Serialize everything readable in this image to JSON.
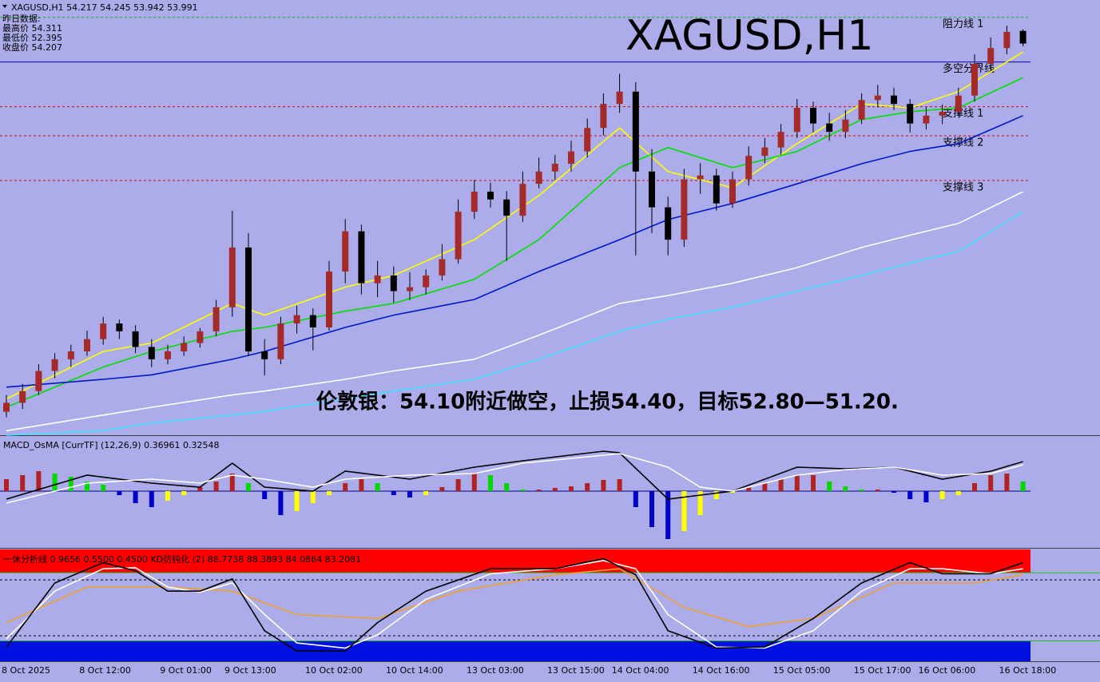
{
  "chart_data": [
    {
      "type": "candlestick",
      "title": "XAGUSD,H1",
      "header": "XAGUSD,H1  54.217 54.245 53.942 53.991",
      "info": [
        "昨日数据:",
        "最高价 54.311",
        "最低价 52.395",
        "收盘价 54.207"
      ],
      "annotation": "伦敦银：54.10附近做空，止损54.40，目标52.80—51.20.",
      "up_color": "#a52a2a",
      "down_color": "#000000",
      "ylim": [
        46.98,
        54.77
      ],
      "categories": [
        null,
        "8 Oct 2025",
        null,
        null,
        null,
        null,
        "8 Oct 12:00",
        null,
        null,
        null,
        null,
        "9 Oct 01:00",
        null,
        null,
        null,
        "9 Oct 13:00",
        null,
        null,
        null,
        null,
        "10 Oct 02:00",
        null,
        null,
        null,
        null,
        "10 Oct 14:00",
        null,
        null,
        null,
        null,
        "13 Oct 03:00",
        null,
        null,
        null,
        null,
        "13 Oct 15:00",
        null,
        null,
        null,
        "14 Oct 04:00",
        null,
        null,
        null,
        null,
        "14 Oct 16:00",
        null,
        null,
        null,
        null,
        "15 Oct 05:00",
        null,
        null,
        null,
        null,
        "15 Oct 17:00",
        null,
        null,
        null,
        "16 Oct 06:00",
        null,
        null,
        null,
        null,
        "16 Oct 18:00"
      ],
      "candles": [
        [
          47.4,
          47.7,
          47.3,
          47.56
        ],
        [
          47.56,
          47.9,
          47.45,
          47.77
        ],
        [
          47.77,
          48.25,
          47.7,
          48.13
        ],
        [
          48.13,
          48.45,
          48.0,
          48.34
        ],
        [
          48.34,
          48.6,
          48.2,
          48.48
        ],
        [
          48.48,
          48.85,
          48.4,
          48.7
        ],
        [
          48.7,
          49.1,
          48.6,
          48.98
        ],
        [
          48.98,
          49.05,
          48.7,
          48.84
        ],
        [
          48.84,
          48.95,
          48.45,
          48.56
        ],
        [
          48.56,
          48.7,
          48.2,
          48.34
        ],
        [
          48.34,
          48.6,
          48.25,
          48.48
        ],
        [
          48.48,
          48.75,
          48.4,
          48.63
        ],
        [
          48.63,
          48.9,
          48.55,
          48.84
        ],
        [
          48.84,
          49.4,
          48.75,
          49.27
        ],
        [
          49.27,
          51.0,
          49.1,
          50.34
        ],
        [
          50.34,
          50.6,
          48.4,
          48.48
        ],
        [
          48.48,
          48.7,
          48.05,
          48.34
        ],
        [
          48.34,
          49.1,
          48.25,
          48.98
        ],
        [
          48.98,
          49.3,
          48.8,
          49.13
        ],
        [
          49.13,
          49.25,
          48.5,
          48.91
        ],
        [
          48.91,
          50.1,
          48.85,
          49.91
        ],
        [
          49.91,
          50.85,
          49.7,
          50.63
        ],
        [
          50.63,
          50.75,
          49.5,
          49.7
        ],
        [
          49.7,
          50.1,
          49.45,
          49.84
        ],
        [
          49.84,
          50.0,
          49.35,
          49.56
        ],
        [
          49.56,
          49.9,
          49.4,
          49.63
        ],
        [
          49.63,
          49.95,
          49.5,
          49.84
        ],
        [
          49.84,
          50.4,
          49.75,
          50.13
        ],
        [
          50.13,
          51.2,
          50.05,
          50.98
        ],
        [
          50.98,
          51.55,
          50.85,
          51.34
        ],
        [
          51.34,
          51.5,
          51.05,
          51.2
        ],
        [
          51.2,
          51.35,
          50.1,
          50.91
        ],
        [
          50.91,
          51.7,
          50.8,
          51.48
        ],
        [
          51.48,
          51.95,
          51.4,
          51.7
        ],
        [
          51.7,
          52.0,
          51.55,
          51.84
        ],
        [
          51.84,
          52.25,
          51.7,
          52.06
        ],
        [
          52.06,
          52.65,
          51.95,
          52.48
        ],
        [
          52.48,
          53.1,
          52.35,
          52.91
        ],
        [
          52.91,
          53.45,
          52.75,
          53.13
        ],
        [
          53.13,
          53.3,
          50.2,
          51.7
        ],
        [
          51.7,
          52.1,
          50.6,
          51.06
        ],
        [
          51.06,
          51.25,
          50.2,
          50.48
        ],
        [
          50.48,
          51.75,
          50.35,
          51.56
        ],
        [
          51.56,
          51.85,
          51.3,
          51.63
        ],
        [
          51.63,
          51.75,
          51.0,
          51.13
        ],
        [
          51.13,
          51.7,
          51.05,
          51.56
        ],
        [
          51.56,
          52.15,
          51.45,
          51.98
        ],
        [
          51.98,
          52.3,
          51.85,
          52.13
        ],
        [
          52.13,
          52.55,
          52.0,
          52.41
        ],
        [
          52.41,
          53.0,
          52.3,
          52.84
        ],
        [
          52.84,
          52.95,
          52.4,
          52.56
        ],
        [
          52.56,
          52.75,
          52.25,
          52.41
        ],
        [
          52.41,
          52.8,
          52.3,
          52.63
        ],
        [
          52.63,
          53.1,
          52.55,
          52.98
        ],
        [
          52.98,
          53.25,
          52.85,
          53.06
        ],
        [
          53.06,
          53.2,
          52.8,
          52.91
        ],
        [
          52.91,
          53.0,
          52.4,
          52.56
        ],
        [
          52.56,
          52.85,
          52.45,
          52.7
        ],
        [
          52.7,
          52.9,
          52.55,
          52.77
        ],
        [
          52.77,
          53.2,
          52.7,
          53.06
        ],
        [
          53.06,
          53.8,
          52.95,
          53.63
        ],
        [
          53.63,
          54.1,
          53.5,
          53.91
        ],
        [
          53.91,
          54.31,
          53.8,
          54.2
        ],
        [
          54.217,
          54.245,
          53.942,
          53.991
        ]
      ],
      "lines": [
        {
          "color": "#ffff00",
          "x": [
            0,
            6,
            9,
            14,
            16,
            21,
            24,
            29,
            33,
            38,
            41,
            45,
            49,
            53,
            56,
            59,
            63
          ],
          "values": [
            47.63,
            48.48,
            48.63,
            49.34,
            49.13,
            49.63,
            49.84,
            50.48,
            51.27,
            52.48,
            51.7,
            51.41,
            52.2,
            52.91,
            52.84,
            53.13,
            53.84
          ]
        },
        {
          "color": "#00e000",
          "x": [
            0,
            6,
            9,
            14,
            16,
            21,
            24,
            29,
            33,
            38,
            41,
            45,
            49,
            53,
            56,
            59,
            63
          ],
          "values": [
            47.48,
            48.2,
            48.48,
            48.84,
            48.91,
            49.2,
            49.34,
            49.77,
            50.48,
            51.77,
            52.13,
            51.77,
            52.06,
            52.63,
            52.77,
            52.84,
            53.38
          ]
        },
        {
          "color": "#0018c8",
          "x": [
            0,
            6,
            9,
            14,
            16,
            21,
            24,
            29,
            33,
            38,
            41,
            45,
            49,
            53,
            56,
            59,
            63
          ],
          "values": [
            47.84,
            47.98,
            48.06,
            48.34,
            48.48,
            48.91,
            49.13,
            49.41,
            49.91,
            50.48,
            50.84,
            51.13,
            51.48,
            51.84,
            52.06,
            52.2,
            52.7
          ]
        },
        {
          "color": "#ffffff",
          "x": [
            0,
            6,
            9,
            14,
            16,
            21,
            24,
            29,
            33,
            38,
            41,
            45,
            49,
            53,
            56,
            59,
            63
          ],
          "values": [
            47.06,
            47.34,
            47.48,
            47.7,
            47.77,
            47.98,
            48.13,
            48.34,
            48.77,
            49.34,
            49.48,
            49.7,
            49.98,
            50.34,
            50.56,
            50.77,
            51.34
          ]
        },
        {
          "color": "#40e0ff",
          "x": [
            0,
            6,
            9,
            14,
            16,
            21,
            24,
            29,
            33,
            38,
            41,
            45,
            49,
            53,
            56,
            59,
            63
          ],
          "values": [
            46.98,
            47.06,
            47.2,
            47.34,
            47.41,
            47.63,
            47.77,
            47.98,
            48.34,
            48.84,
            49.06,
            49.27,
            49.56,
            49.84,
            50.06,
            50.27,
            50.98
          ]
        }
      ],
      "levels": [
        {
          "label": "阻力线 1",
          "value": 54.46,
          "color": "#00c000",
          "style": "dashed"
        },
        {
          "label": "多空分界线",
          "value": 53.66,
          "color": "#0000c0",
          "style": "solid"
        },
        {
          "label": "支撑线 1",
          "value": 52.86,
          "color": "#e00000",
          "style": "dashed"
        },
        {
          "label": "支撑线 2",
          "value": 52.34,
          "color": "#e00000",
          "style": "dashed"
        },
        {
          "label": "支撑线 3",
          "value": 51.54,
          "color": "#e00000",
          "style": "dashed"
        }
      ]
    },
    {
      "type": "macd",
      "header": "MACD_OsMA [CurrTF] (12,26,9) 0.36961 0.32548",
      "ylim": [
        -0.7,
        0.68
      ],
      "bar_colors": {
        "rise_pos": "#b22222",
        "fall_pos": "#00d800",
        "fall_neg": "#0000c8",
        "rise_neg": "#ffff00"
      },
      "values": [
        0.15,
        0.2,
        0.25,
        0.22,
        0.18,
        0.12,
        0.08,
        -0.05,
        -0.15,
        -0.2,
        -0.12,
        -0.05,
        0.05,
        0.12,
        0.22,
        0.1,
        -0.1,
        -0.3,
        -0.25,
        -0.15,
        -0.05,
        0.1,
        0.15,
        0.1,
        -0.05,
        -0.08,
        -0.05,
        0.05,
        0.15,
        0.22,
        0.2,
        0.1,
        0.02,
        0.02,
        0.04,
        0.06,
        0.1,
        0.14,
        0.15,
        -0.2,
        -0.45,
        -0.6,
        -0.5,
        -0.3,
        -0.1,
        -0.02,
        0.05,
        0.1,
        0.15,
        0.2,
        0.2,
        0.12,
        0.06,
        0.02,
        0.02,
        -0.02,
        -0.1,
        -0.14,
        -0.1,
        -0.05,
        0.1,
        0.2,
        0.22,
        0.12
      ],
      "lines": [
        {
          "color": "#000000",
          "x": [
            0,
            5,
            9,
            12,
            14,
            16,
            19,
            21,
            25,
            29,
            32,
            37,
            38,
            41,
            43,
            45,
            49,
            52,
            55,
            58,
            61,
            63
          ],
          "values": [
            -0.1,
            0.2,
            0.1,
            0.05,
            0.35,
            0.05,
            0.0,
            0.25,
            0.15,
            0.3,
            0.38,
            0.5,
            0.48,
            -0.1,
            -0.05,
            0.0,
            0.3,
            0.28,
            0.3,
            0.15,
            0.25,
            0.37
          ]
        },
        {
          "color": "#ffffff",
          "x": [
            0,
            5,
            9,
            12,
            14,
            16,
            19,
            21,
            25,
            29,
            32,
            37,
            38,
            41,
            43,
            45,
            49,
            52,
            55,
            58,
            61,
            63
          ],
          "values": [
            -0.15,
            0.1,
            0.15,
            0.1,
            0.2,
            0.15,
            0.05,
            0.15,
            0.2,
            0.22,
            0.35,
            0.45,
            0.47,
            0.3,
            0.05,
            0.0,
            0.2,
            0.27,
            0.3,
            0.2,
            0.22,
            0.33
          ]
        }
      ]
    },
    {
      "type": "oscillator",
      "header": "一休分析线 0.9656 0.5500 0.4500  KD防钝化 (2) 88.7738 88.3893 84.0864 83.2081",
      "ylim": [
        -5,
        105
      ],
      "zones": [
        {
          "from": 82,
          "to": 105,
          "color": "#ff0000"
        },
        {
          "from": -5,
          "to": 15,
          "color": "#0010e0"
        }
      ],
      "levels": [
        {
          "value": 82,
          "color": "#20c020",
          "style": "solid"
        },
        {
          "value": 75,
          "color": "#000000",
          "style": "dashed"
        },
        {
          "value": 20,
          "color": "#000000",
          "style": "dashed"
        },
        {
          "value": 15,
          "color": "#20c020",
          "style": "solid"
        }
      ],
      "lines": [
        {
          "color": "#f0a030",
          "x": [
            0,
            5,
            10,
            14,
            18,
            23,
            28,
            34,
            38,
            42,
            46,
            50,
            55,
            60,
            63
          ],
          "values": [
            33,
            68,
            68,
            64,
            41,
            37,
            64,
            80,
            86,
            48,
            29,
            37,
            72,
            72,
            80
          ]
        },
        {
          "color": "#ffffff",
          "x": [
            0,
            3,
            6,
            8,
            10,
            12,
            14,
            16,
            18,
            21,
            23,
            26,
            30,
            34,
            37,
            39,
            41,
            44,
            47,
            50,
            53,
            56,
            58,
            61,
            63
          ],
          "values": [
            17,
            64,
            86,
            87,
            68,
            63,
            72,
            41,
            13,
            8,
            21,
            56,
            81,
            86,
            94,
            86,
            41,
            9,
            8,
            25,
            64,
            86,
            86,
            81,
            86
          ]
        },
        {
          "color": "#000000",
          "x": [
            0,
            3,
            6,
            8,
            10,
            12,
            14,
            16,
            18,
            21,
            23,
            26,
            30,
            34,
            37,
            39,
            41,
            44,
            47,
            50,
            53,
            56,
            58,
            61,
            63
          ],
          "values": [
            9,
            72,
            92,
            84,
            64,
            64,
            76,
            25,
            5,
            5,
            33,
            64,
            86,
            86,
            96,
            80,
            25,
            8,
            9,
            37,
            72,
            92,
            81,
            81,
            92
          ]
        }
      ]
    }
  ]
}
